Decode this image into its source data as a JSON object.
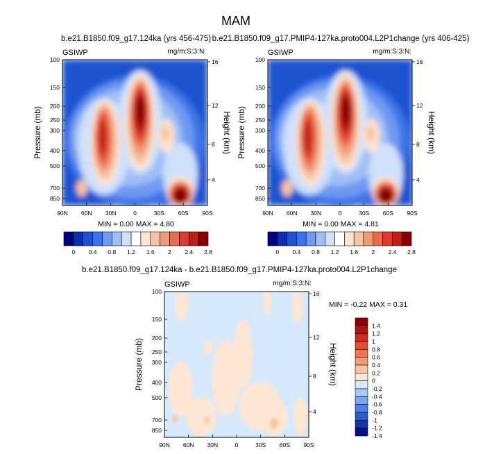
{
  "chart_data": {
    "type": "heatmap",
    "title": "MAM",
    "panels": [
      {
        "id": "p1",
        "subtitle": "b.e21.B1850.f09_g17.124ka (yrs 456-475)",
        "left_label": "GSIWP",
        "right_label": "mg/m:S:3:N:",
        "ylabel": "Pressure (mb)",
        "ylabel_right": "Height (km)",
        "yticks": [
          "100",
          "150",
          "200",
          "250",
          "300",
          "400",
          "500",
          "700",
          "850"
        ],
        "yticks_right": [
          "16",
          "12",
          "8",
          "4"
        ],
        "xticks": [
          "90N",
          "60N",
          "30N",
          "0",
          "30S",
          "60S",
          "90S"
        ],
        "stats": "MIN =  0.00  MAX =  4.80",
        "stat_min": 0.0,
        "stat_max": 4.8
      },
      {
        "id": "p2",
        "subtitle": "b.e21.B1850.f09_g17.PMIP4-127ka.proto004.L2P1change (yrs 406-425)",
        "left_label": "GSIWP",
        "right_label": "mg/m:S:3:N:",
        "ylabel": "Pressure (mb)",
        "ylabel_right": "Height (km)",
        "yticks": [
          "100",
          "150",
          "200",
          "250",
          "300",
          "400",
          "500",
          "700",
          "850"
        ],
        "yticks_right": [
          "16",
          "12",
          "8",
          "4"
        ],
        "xticks": [
          "90N",
          "60N",
          "30N",
          "0",
          "30S",
          "60S",
          "90S"
        ],
        "stats": "MIN =  0.00  MAX =  4.81",
        "stat_min": 0.0,
        "stat_max": 4.81
      },
      {
        "id": "p3",
        "subtitle": "b.e21.B1850.f09_g17.124ka - b.e21.B1850.f09_g17.PMIP4-127ka.proto004.L2P1change",
        "left_label": "GSIWP",
        "right_label": "mg/m:S:3:N:",
        "ylabel": "Pressure (mb)",
        "ylabel_right": "Height (km)",
        "yticks": [
          "100",
          "150",
          "200",
          "250",
          "300",
          "400",
          "500",
          "700",
          "850"
        ],
        "yticks_right": [
          "16",
          "12",
          "8",
          "4"
        ],
        "xticks": [
          "90N",
          "60N",
          "30N",
          "0",
          "30S",
          "60S",
          "90S"
        ],
        "stats": "MIN = -0.22  MAX =   0.31",
        "stat_min": -0.22,
        "stat_max": 0.31
      }
    ],
    "colorbar_main": {
      "labels": [
        "0",
        "0.4",
        "0.8",
        "1.2",
        "1.6",
        "2",
        "2.4",
        "2.8"
      ],
      "colors": [
        "#00007f",
        "#0a2fa8",
        "#1d52d0",
        "#3c74e8",
        "#6e99f1",
        "#9fbef7",
        "#cee0fb",
        "#ffffff",
        "#fde4d0",
        "#f7c3a3",
        "#f29a78",
        "#ea6b4d",
        "#dc3c2c",
        "#c01c18",
        "#8b0000"
      ]
    },
    "colorbar_diff": {
      "labels": [
        "1.4",
        "1.2",
        "1",
        "0.8",
        "0.6",
        "0.4",
        "0.2",
        "0",
        "-0.2",
        "-0.4",
        "-0.6",
        "-0.8",
        "-1",
        "-1.2",
        "-1.4"
      ],
      "colors": [
        "#8b0000",
        "#b01212",
        "#d02a22",
        "#e64a33",
        "#ef744f",
        "#f59c76",
        "#fbc4a2",
        "#fde7d4",
        "#d6e8fb",
        "#a9c9f6",
        "#7aa5ef",
        "#4f80e3",
        "#2a5bd0",
        "#1236ac",
        "#050f88"
      ]
    }
  }
}
